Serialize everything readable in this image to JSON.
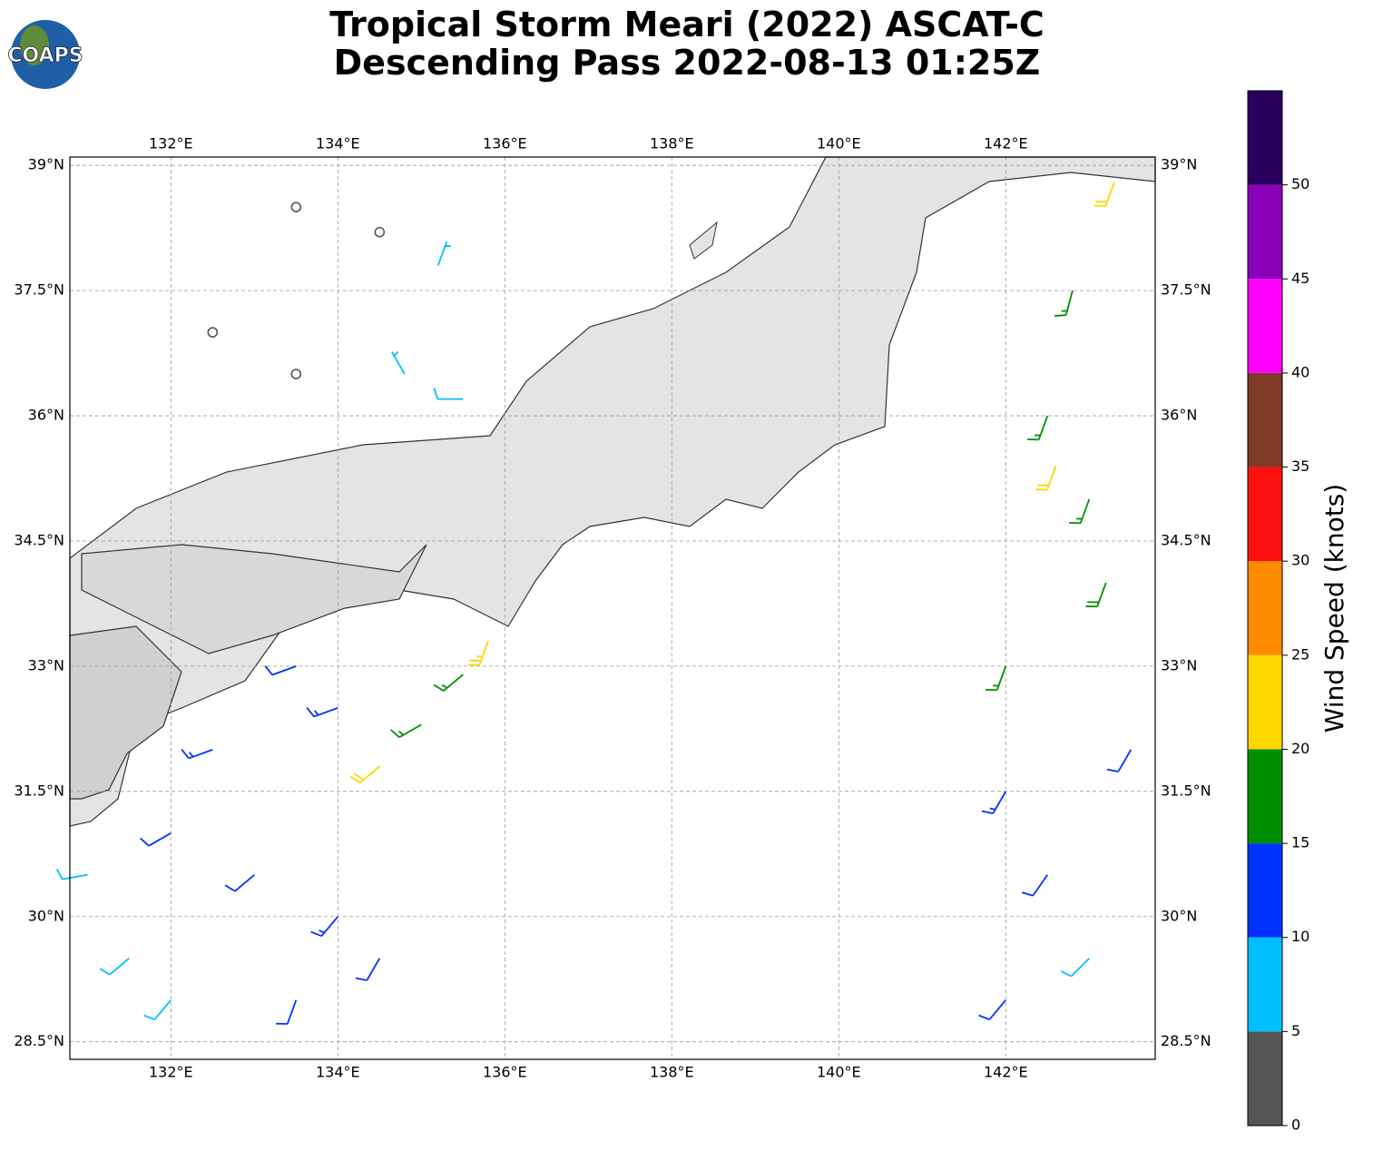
{
  "logo": "COAPS",
  "title": [
    "Tropical Storm Meari (2022) ASCAT-C",
    "Descending Pass 2022-08-13 01:25Z"
  ],
  "map": {
    "xlim": [
      130.79,
      143.79
    ],
    "ylim": [
      28.29,
      39.1
    ],
    "xticks": [
      {
        "value": 132,
        "label": "132°E"
      },
      {
        "value": 134,
        "label": "134°E"
      },
      {
        "value": 136,
        "label": "136°E"
      },
      {
        "value": 138,
        "label": "138°E"
      },
      {
        "value": 140,
        "label": "140°E"
      },
      {
        "value": 142,
        "label": "142°E"
      }
    ],
    "yticks": [
      {
        "value": 39,
        "label": "39°N"
      },
      {
        "value": 37.5,
        "label": "37.5°N"
      },
      {
        "value": 36,
        "label": "36°N"
      },
      {
        "value": 34.5,
        "label": "34.5°N"
      },
      {
        "value": 33,
        "label": "33°N"
      },
      {
        "value": 31.5,
        "label": "31.5°N"
      },
      {
        "value": 30,
        "label": "30°N"
      },
      {
        "value": 28.5,
        "label": "28.5°N"
      }
    ],
    "grid": true,
    "barbs": {
      "lon": [
        133.5,
        134.5,
        135.2,
        132.5,
        133.5,
        134.8,
        135.5,
        132.0,
        133.0,
        134.0,
        133.5,
        134.5,
        131.5,
        132.5,
        134.0,
        135.0,
        135.5,
        134.5,
        135.8,
        131.0,
        132.0,
        133.5,
        142.5,
        142.8,
        142.0,
        143.0,
        143.3,
        142.6,
        142.0,
        142.5,
        143.0,
        142.0,
        143.5,
        143.2
      ],
      "lat": [
        38.5,
        38.2,
        37.8,
        37.0,
        36.5,
        36.5,
        36.2,
        31.0,
        30.5,
        30.0,
        29.0,
        29.5,
        29.5,
        32.0,
        32.5,
        32.3,
        32.9,
        31.8,
        33.3,
        30.5,
        29.0,
        33.0,
        36.0,
        37.5,
        33.0,
        35.0,
        38.8,
        35.4,
        31.5,
        30.5,
        29.5,
        29.0,
        32.0,
        34.0
      ],
      "speed": [
        4,
        3,
        5,
        3,
        4,
        6,
        8,
        12,
        12,
        13,
        11,
        12,
        8,
        13,
        14,
        17,
        17,
        22,
        23,
        8,
        9,
        12,
        17,
        17,
        16,
        17,
        22,
        21,
        14,
        12,
        8,
        11,
        12,
        18
      ],
      "direction": [
        0,
        300,
        20,
        90,
        60,
        330,
        270,
        240,
        230,
        220,
        200,
        210,
        230,
        250,
        250,
        240,
        230,
        230,
        200,
        260,
        220,
        250,
        200,
        195,
        200,
        200,
        200,
        200,
        210,
        215,
        225,
        220,
        210,
        200
      ]
    }
  },
  "colorbar": {
    "label": "Wind Speed (knots)",
    "bounds": [
      0,
      5,
      10,
      15,
      20,
      25,
      30,
      35,
      40,
      45,
      50,
      55
    ],
    "colors": [
      "#555555",
      "#00bfff",
      "#0033ff",
      "#008f00",
      "#ffd700",
      "#ff8c00",
      "#ff1010",
      "#803a28",
      "#ff00ff",
      "#8a00b8",
      "#2a005f"
    ],
    "ticks": [
      0,
      5,
      10,
      15,
      20,
      25,
      30,
      35,
      40,
      45,
      50
    ]
  }
}
